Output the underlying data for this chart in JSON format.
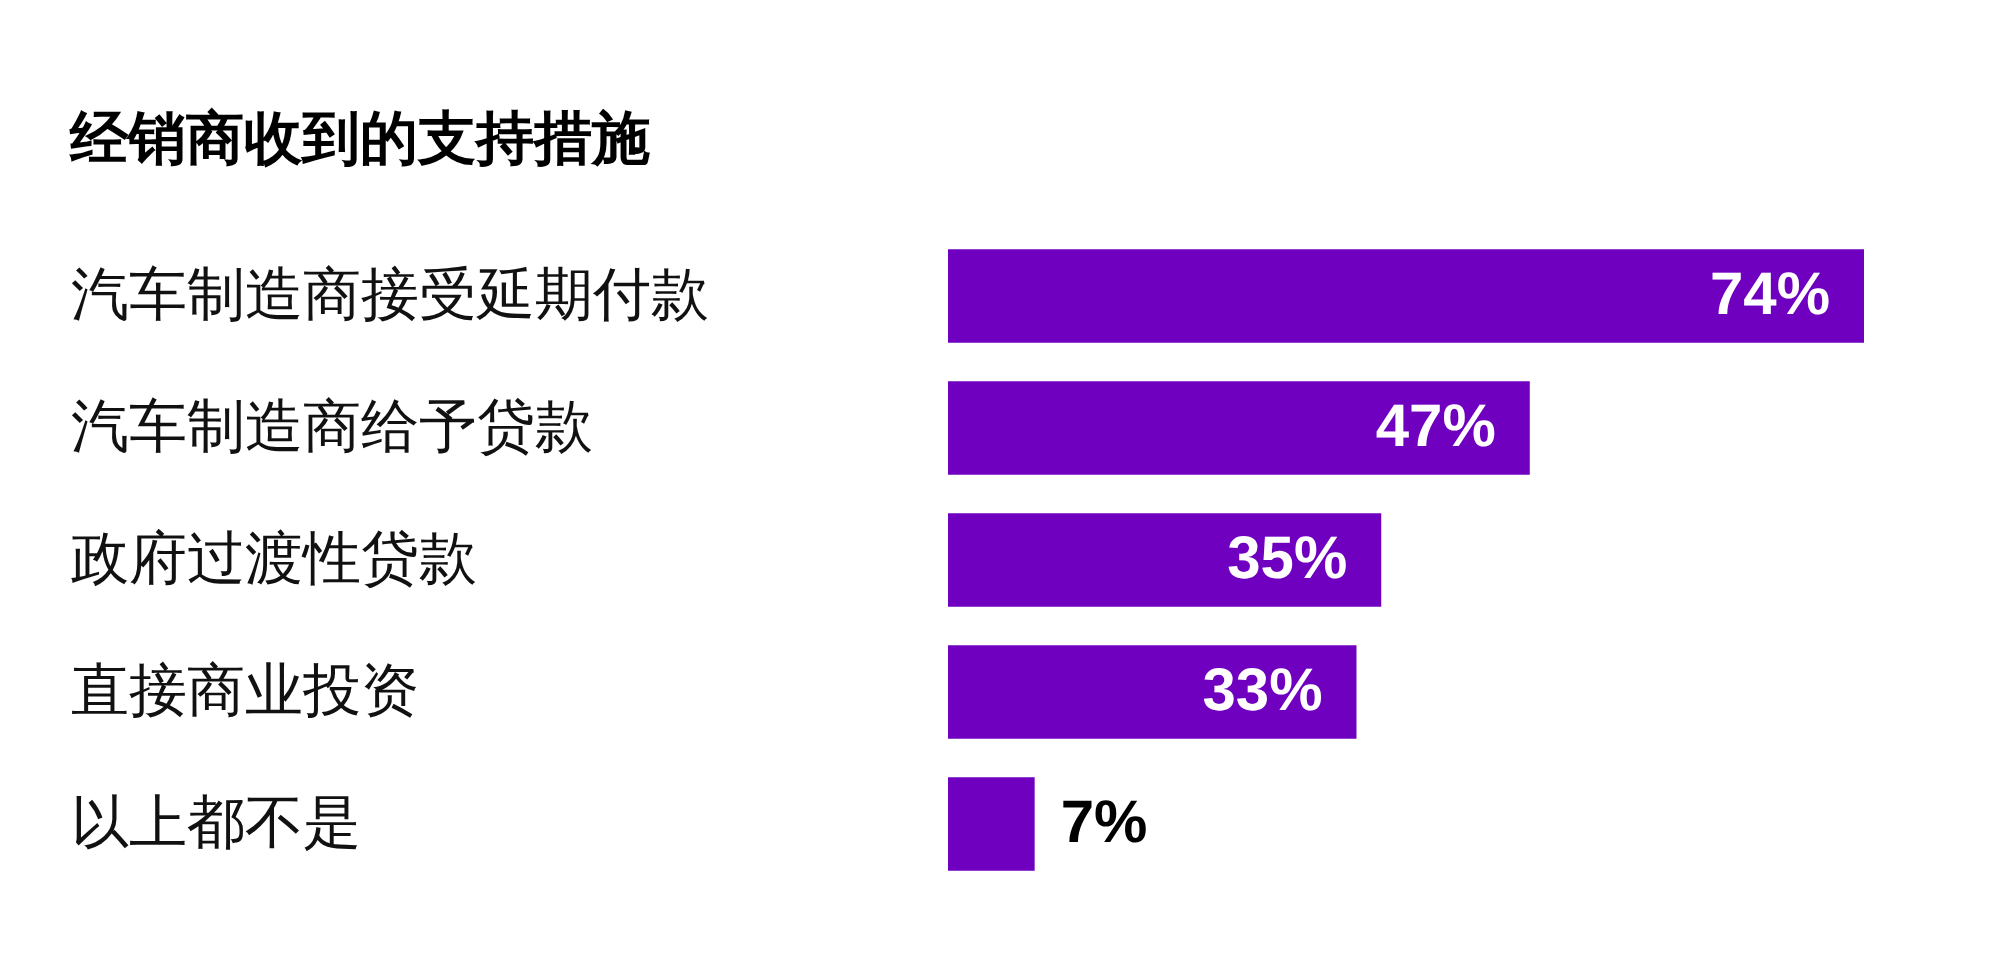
{
  "chart_data": {
    "type": "bar",
    "orientation": "horizontal",
    "title": "经销商收到的支持措施",
    "categories": [
      "汽车制造商接受延期付款",
      "汽车制造商给予贷款",
      "政府过渡性贷款",
      "直接商业投资",
      "以上都不是"
    ],
    "values": [
      74,
      47,
      35,
      33,
      7
    ],
    "value_labels": [
      "74%",
      "47%",
      "35%",
      "33%",
      "7%"
    ],
    "color": "#7000c0",
    "tick_labels": "y"
  }
}
